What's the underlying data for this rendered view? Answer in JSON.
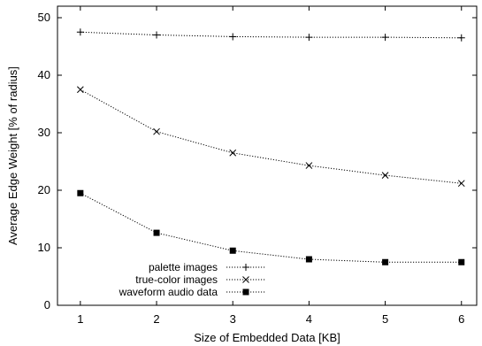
{
  "chart_data": {
    "type": "line",
    "title": "",
    "xlabel": "Size of Embedded Data [KB]",
    "ylabel": "Average Edge Weight [% of radius]",
    "x": [
      1,
      2,
      3,
      4,
      5,
      6
    ],
    "xlim": [
      0.7,
      6.2
    ],
    "ylim": [
      0,
      52
    ],
    "xticks": [
      "1",
      "2",
      "3",
      "4",
      "5",
      "6"
    ],
    "yticks": [
      "0",
      "10",
      "20",
      "30",
      "40",
      "50"
    ],
    "grid": false,
    "legend_position": "bottom-left",
    "series": [
      {
        "name": "palette images",
        "marker": "plus",
        "values": [
          47.5,
          47.0,
          46.7,
          46.6,
          46.6,
          46.5
        ]
      },
      {
        "name": "true-color images",
        "marker": "cross",
        "values": [
          37.5,
          30.2,
          26.5,
          24.3,
          22.6,
          21.2
        ]
      },
      {
        "name": "waveform audio data",
        "marker": "square",
        "values": [
          19.5,
          12.6,
          9.5,
          8.0,
          7.5,
          7.5
        ]
      }
    ]
  }
}
